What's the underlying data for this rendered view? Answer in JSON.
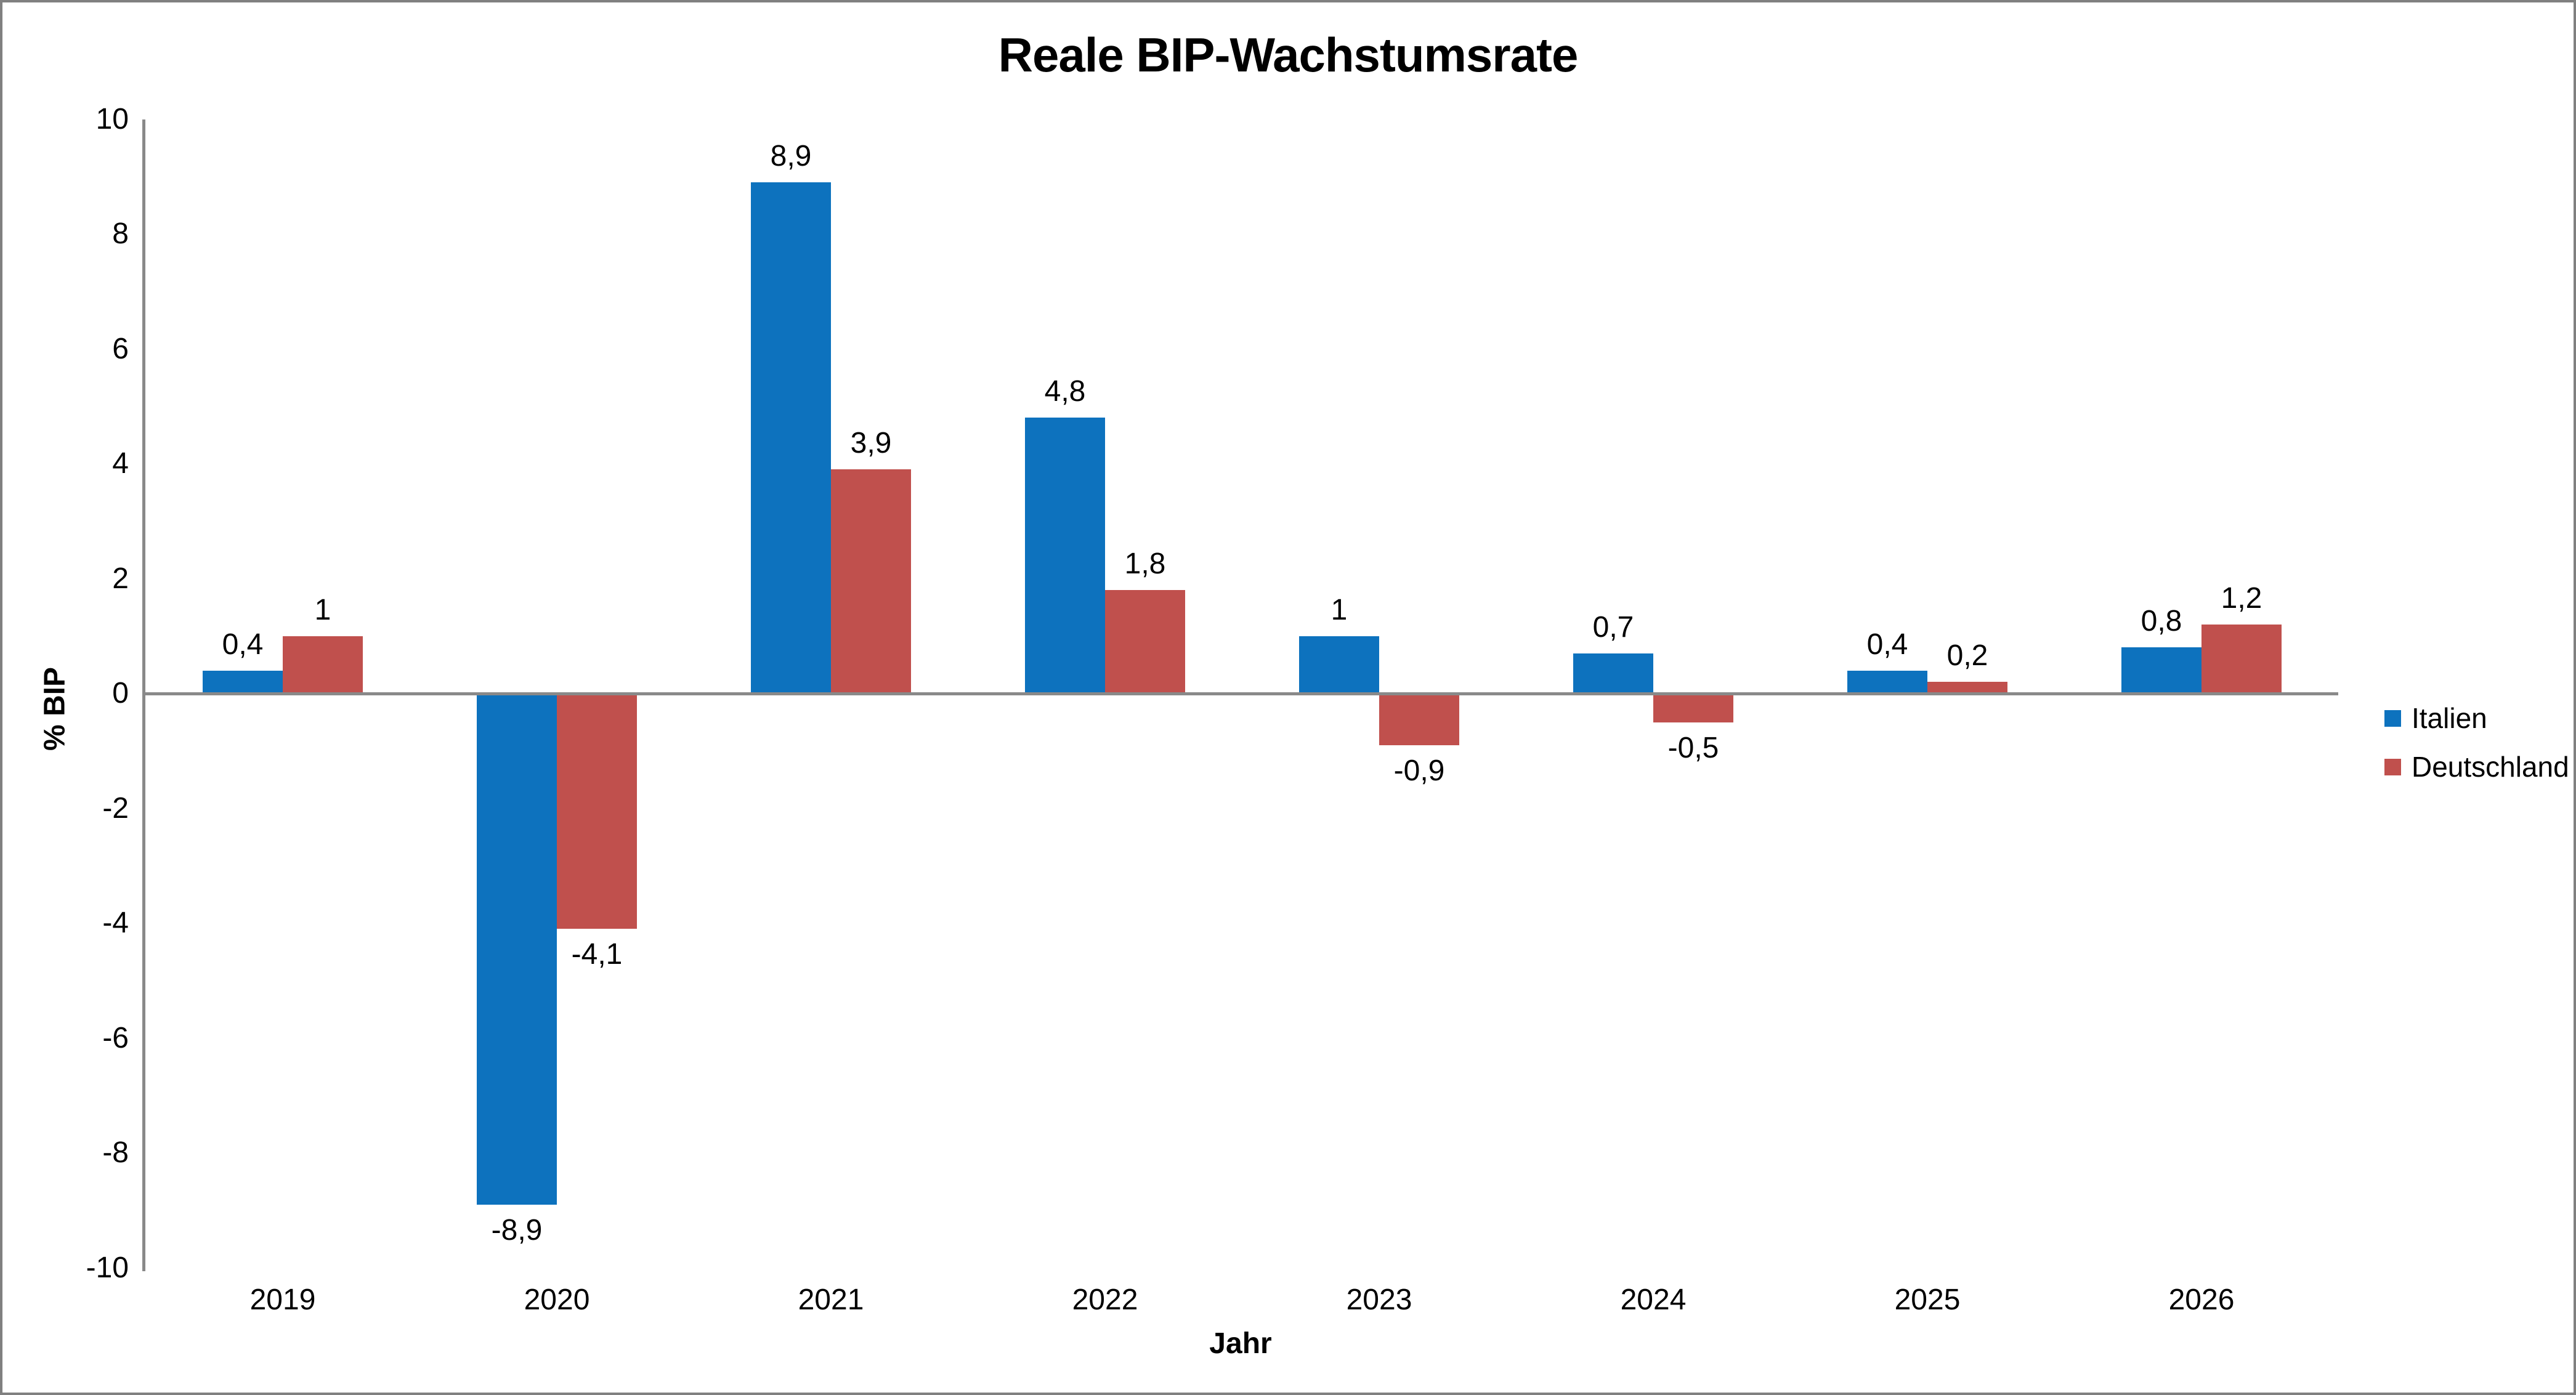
{
  "chart_data": {
    "type": "bar",
    "title": "Reale BIP-Wachstumsrate",
    "xlabel": "Jahr",
    "ylabel": "% BIP",
    "categories": [
      "2019",
      "2020",
      "2021",
      "2022",
      "2023",
      "2024",
      "2025",
      "2026"
    ],
    "series": [
      {
        "name": "Italien",
        "color": "#0D72BE",
        "values": [
          0.4,
          -8.9,
          8.9,
          4.8,
          1,
          0.7,
          0.4,
          0.8
        ],
        "labels": [
          "0,4",
          "-8,9",
          "8,9",
          "4,8",
          "1",
          "0,7",
          "0,4",
          "0,8"
        ]
      },
      {
        "name": "Deutschland",
        "color": "#C0504D",
        "values": [
          1,
          -4.1,
          3.9,
          1.8,
          -0.9,
          -0.5,
          0.2,
          1.2
        ],
        "labels": [
          "1",
          "-4,1",
          "3,9",
          "1,8",
          "-0,9",
          "-0,5",
          "0,2",
          "1,2"
        ]
      }
    ],
    "ylim": [
      -10,
      10
    ],
    "yticks": [
      "10",
      "8",
      "6",
      "4",
      "2",
      "0",
      "-2",
      "-4",
      "-6",
      "-8",
      "-10"
    ],
    "grid": "off",
    "legend_position": "right",
    "axis_color": "#898989",
    "frame_border_color": "#808080",
    "background_color": "#FFFFFF"
  }
}
